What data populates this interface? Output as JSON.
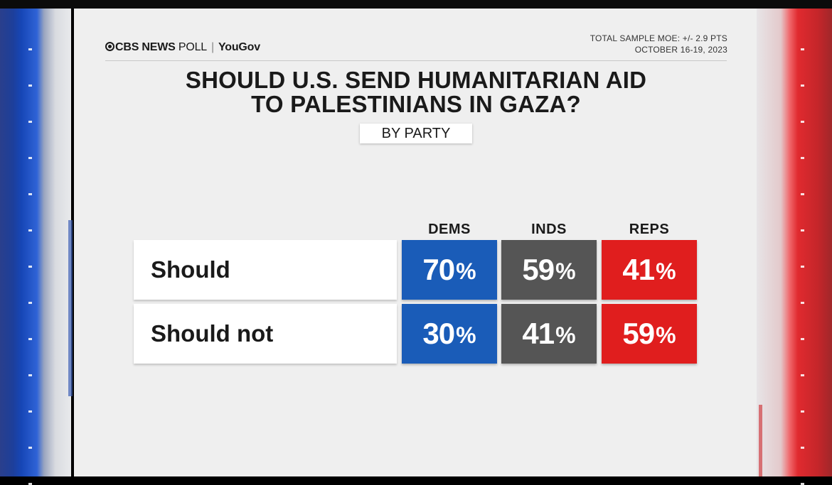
{
  "header": {
    "logo_cbs": "CBS NEWS",
    "logo_poll": "POLL",
    "logo_yougov": "YouGov",
    "moe": "TOTAL SAMPLE MOE: +/- 2.9 PTS",
    "dates": "OCTOBER 16-19, 2023"
  },
  "title_line1": "SHOULD U.S. SEND HUMANITARIAN AID",
  "title_line2": "TO PALESTINIANS IN GAZA?",
  "subtitle": "BY PARTY",
  "colors": {
    "dems": "#1a5cb8",
    "inds": "#555555",
    "reps": "#e01e1e"
  },
  "chart_data": {
    "type": "table",
    "title": "SHOULD U.S. SEND HUMANITARIAN AID TO PALESTINIANS IN GAZA?",
    "subtitle": "BY PARTY",
    "columns": [
      "DEMS",
      "INDS",
      "REPS"
    ],
    "rows": [
      "Should",
      "Should not"
    ],
    "series": [
      {
        "name": "Should",
        "values": [
          70,
          59,
          41
        ]
      },
      {
        "name": "Should not",
        "values": [
          30,
          41,
          59
        ]
      }
    ],
    "unit": "%"
  }
}
